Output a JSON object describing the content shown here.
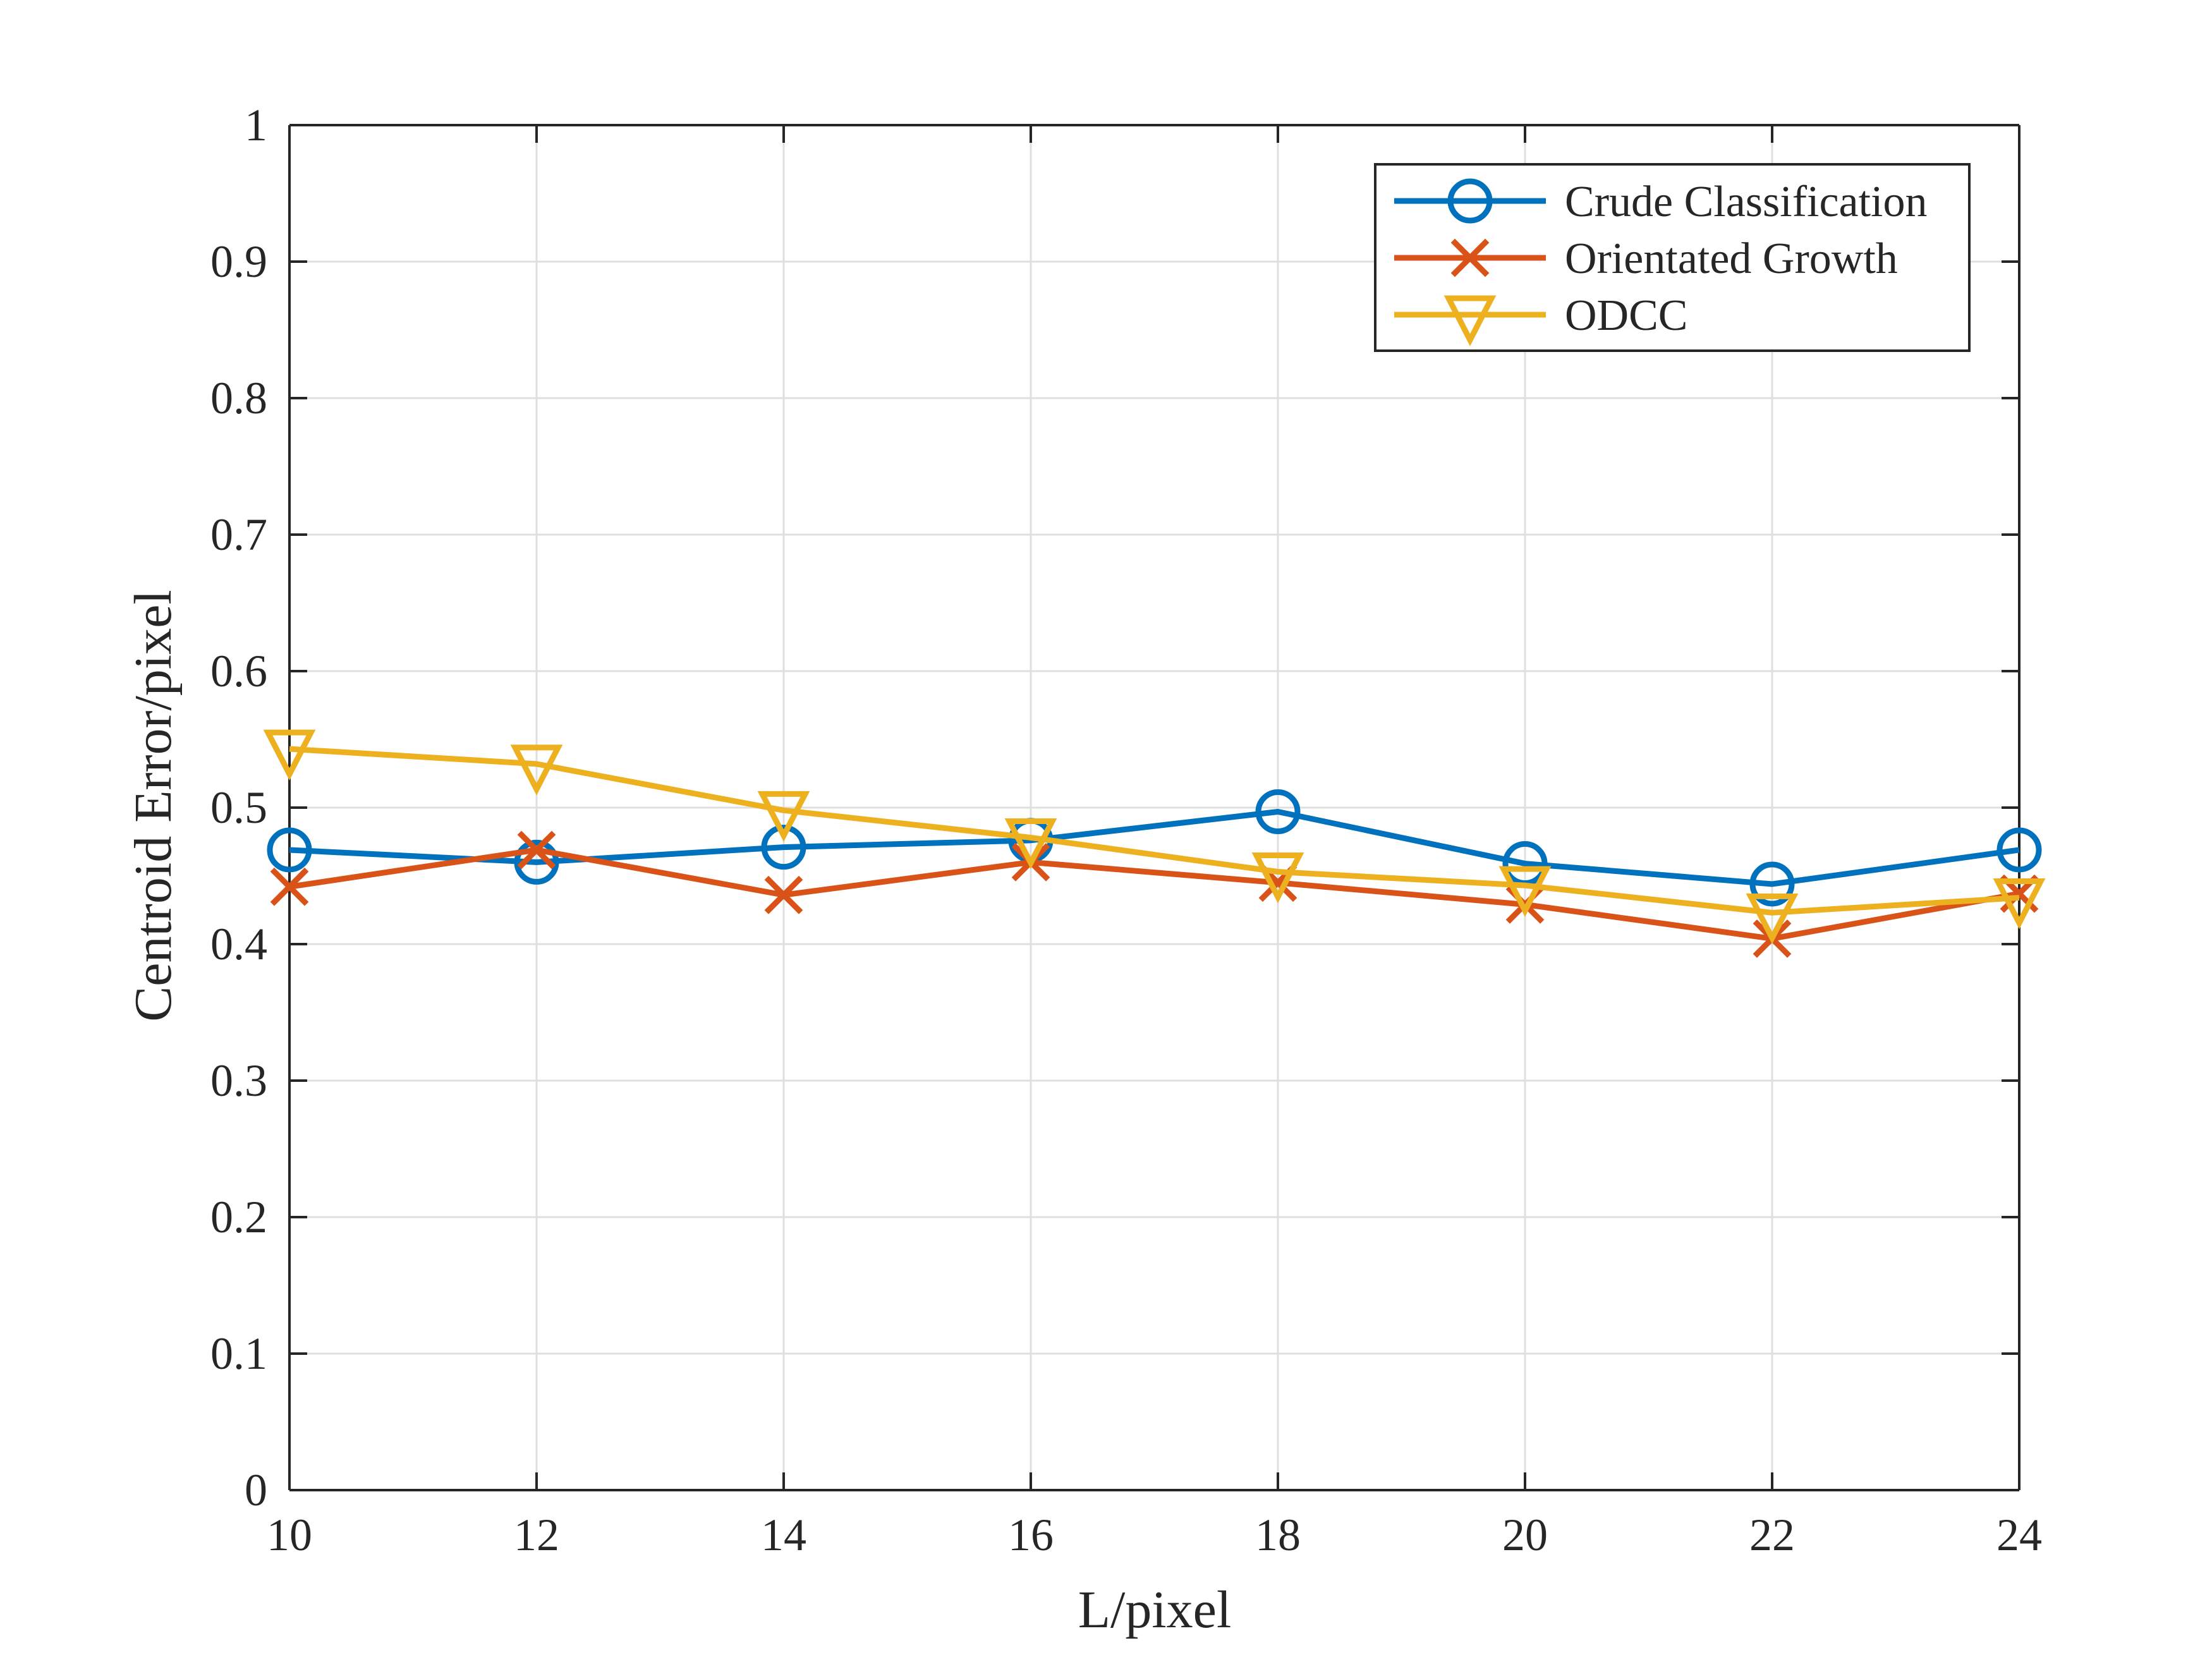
{
  "chart_data": {
    "type": "line",
    "x": [
      10,
      12,
      14,
      16,
      18,
      20,
      22,
      24
    ],
    "series": [
      {
        "name": "Crude Classification",
        "color": "#0072BD",
        "marker": "circle",
        "values": [
          0.469,
          0.46,
          0.471,
          0.476,
          0.497,
          0.459,
          0.444,
          0.469
        ]
      },
      {
        "name": "Orientated Growth",
        "color": "#D95319",
        "marker": "x",
        "values": [
          0.442,
          0.469,
          0.436,
          0.46,
          0.445,
          0.429,
          0.404,
          0.437
        ]
      },
      {
        "name": "ODCC",
        "color": "#EDB120",
        "marker": "triangle-down",
        "values": [
          0.543,
          0.532,
          0.498,
          0.478,
          0.453,
          0.443,
          0.423,
          0.434
        ]
      }
    ],
    "xlabel": "L/pixel",
    "ylabel": "Centroid Error/pixel",
    "xlim": [
      10,
      24
    ],
    "ylim": [
      0,
      1
    ],
    "xticks": [
      10,
      12,
      14,
      16,
      18,
      20,
      22,
      24
    ],
    "xtick_labels": [
      "10",
      "12",
      "14",
      "16",
      "18",
      "20",
      "22",
      "24"
    ],
    "yticks": [
      0,
      0.1,
      0.2,
      0.3,
      0.4,
      0.5,
      0.6,
      0.7,
      0.8,
      0.9,
      1
    ],
    "ytick_labels": [
      "0",
      "0.1",
      "0.2",
      "0.3",
      "0.4",
      "0.5",
      "0.6",
      "0.7",
      "0.8",
      "0.9",
      "1"
    ],
    "grid": true,
    "legend_position": "top-right"
  }
}
